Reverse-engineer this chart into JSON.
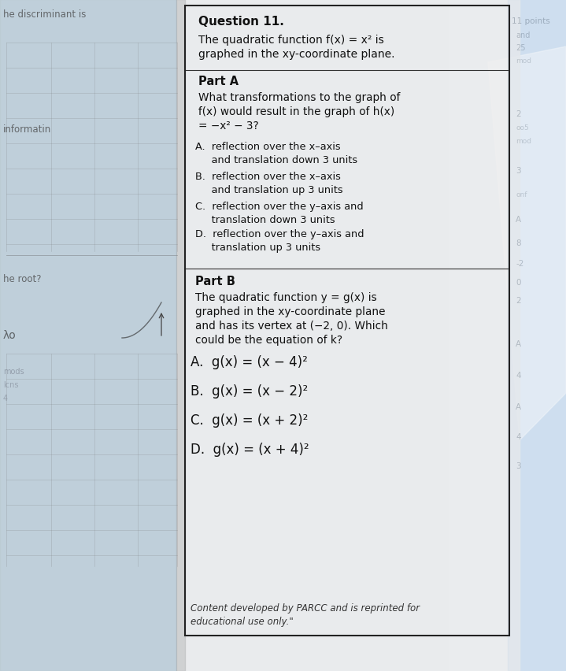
{
  "bg_color": "#c8d8e8",
  "paper_color": "#f0f0f0",
  "question_num": "Question 11.",
  "intro_line1": "The quadratic function f(x) = x² is",
  "intro_line2": "graphed in the xy-coordinate plane.",
  "part_a_label": "Part A",
  "part_a_q1": "What transformations to the graph of",
  "part_a_q2": "f(x) would result in the graph of h(x)",
  "part_a_q3": "= −x² − 3?",
  "part_a_options": [
    "A.  reflection over the x–axis",
    "     and translation down 3 units",
    "B.  reflection over the x–axis",
    "     and translation up 3 units",
    "C.  reflection over the y–axis and",
    "     translation down 3 units",
    "D.  reflection over the y–axis and",
    "     translation up 3 units"
  ],
  "part_b_label": "Part B",
  "part_b_q1": "The quadratic function y = g(x) is",
  "part_b_q2": "graphed in the xy-coordinate plane",
  "part_b_q3": "and has its vertex at (−2, 0). Which",
  "part_b_q4": "could be the equation of k?",
  "part_b_options": [
    "A.  g(x) = (x − 4)²",
    "B.  g(x) = (x − 2)²",
    "C.  g(x) = (x + 2)²",
    "D.  g(x) = (x + 4)²"
  ],
  "footer1": "Content developed by PARCC and is reprinted for",
  "footer2": "educational use only.\"",
  "left_text1": "he discriminant is",
  "left_text2": "informatin",
  "left_text3": "he root?",
  "left_text4": "λo"
}
